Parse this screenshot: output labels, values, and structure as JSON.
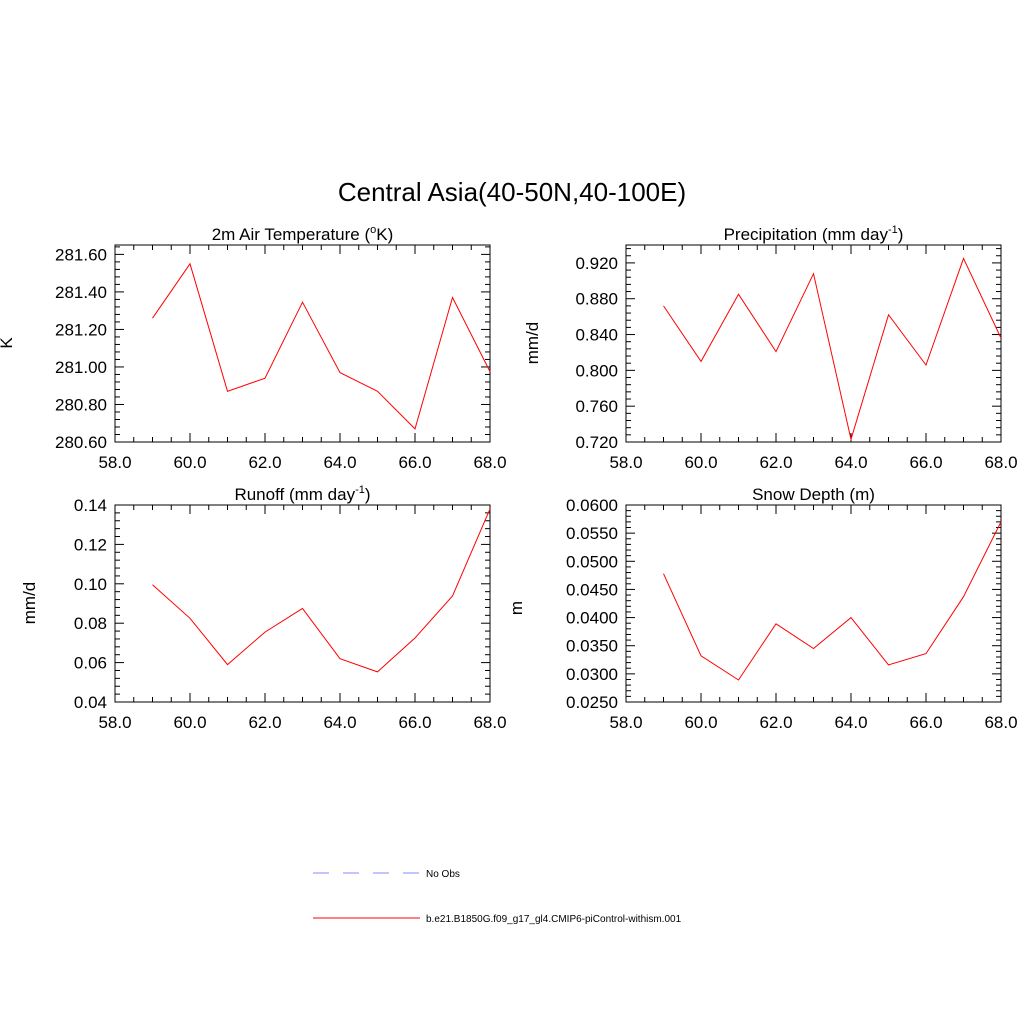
{
  "figure": {
    "main_title": "Central Asia(40-50N,40-100E)",
    "legend": [
      {
        "label": "No Obs",
        "color": "#8888ff",
        "dash": true
      },
      {
        "label": "b.e21.B1850G.f09_g17_gl4.CMIP6-piControl-withism.001",
        "color": "#ff0000",
        "dash": false
      }
    ]
  },
  "chart_data": [
    {
      "type": "line",
      "title": "2m Air Temperature (",
      "title_sup": "o",
      "title_post": "K)",
      "ylabel": "K",
      "xlim": [
        58,
        68
      ],
      "ylim": [
        280.6,
        281.65
      ],
      "xticks": [
        "58.0",
        "60.0",
        "62.0",
        "64.0",
        "66.0",
        "68.0"
      ],
      "yticks": [
        "280.60",
        "280.80",
        "281.00",
        "281.20",
        "281.40",
        "281.60"
      ],
      "series": [
        {
          "color": "#ff0000",
          "x": [
            59,
            60,
            61,
            62,
            63,
            64,
            65,
            66,
            67,
            68
          ],
          "y": [
            281.26,
            281.55,
            280.87,
            280.94,
            281.345,
            280.97,
            280.87,
            280.67,
            281.37,
            280.975
          ]
        }
      ]
    },
    {
      "type": "line",
      "title": "Precipitation (mm day",
      "title_sup": "-1",
      "title_post": ")",
      "ylabel": "mm/d",
      "xlim": [
        58,
        68
      ],
      "ylim": [
        0.72,
        0.94
      ],
      "xticks": [
        "58.0",
        "60.0",
        "62.0",
        "64.0",
        "66.0",
        "68.0"
      ],
      "yticks": [
        "0.720",
        "0.760",
        "0.800",
        "0.840",
        "0.880",
        "0.920"
      ],
      "series": [
        {
          "color": "#ff0000",
          "x": [
            59,
            60,
            61,
            62,
            63,
            64,
            65,
            66,
            67,
            68
          ],
          "y": [
            0.872,
            0.81,
            0.885,
            0.821,
            0.908,
            0.723,
            0.862,
            0.806,
            0.925,
            0.836
          ]
        }
      ]
    },
    {
      "type": "line",
      "title": "Runoff (mm day",
      "title_sup": "-1",
      "title_post": ")",
      "ylabel": "mm/d",
      "xlim": [
        58,
        68
      ],
      "ylim": [
        0.04,
        0.14
      ],
      "xticks": [
        "58.0",
        "60.0",
        "62.0",
        "64.0",
        "66.0",
        "68.0"
      ],
      "yticks": [
        "0.04",
        "0.06",
        "0.08",
        "0.10",
        "0.12",
        "0.14"
      ],
      "series": [
        {
          "color": "#ff0000",
          "x": [
            59,
            60,
            61,
            62,
            63,
            64,
            65,
            66,
            67,
            68
          ],
          "y": [
            0.0995,
            0.0825,
            0.059,
            0.0755,
            0.0875,
            0.062,
            0.0553,
            0.0725,
            0.0938,
            0.138
          ]
        }
      ]
    },
    {
      "type": "line",
      "title": "Snow Depth (m)",
      "title_sup": "",
      "title_post": "",
      "ylabel": "m",
      "xlim": [
        58,
        68
      ],
      "ylim": [
        0.025,
        0.06
      ],
      "xticks": [
        "58.0",
        "60.0",
        "62.0",
        "64.0",
        "66.0",
        "68.0"
      ],
      "yticks": [
        "0.0250",
        "0.0300",
        "0.0350",
        "0.0400",
        "0.0450",
        "0.0500",
        "0.0550",
        "0.0600"
      ],
      "series": [
        {
          "color": "#ff0000",
          "x": [
            59,
            60,
            61,
            62,
            63,
            64,
            65,
            66,
            67,
            68
          ],
          "y": [
            0.0478,
            0.0332,
            0.0289,
            0.0389,
            0.0345,
            0.04,
            0.0316,
            0.0336,
            0.0437,
            0.057
          ]
        }
      ]
    }
  ]
}
